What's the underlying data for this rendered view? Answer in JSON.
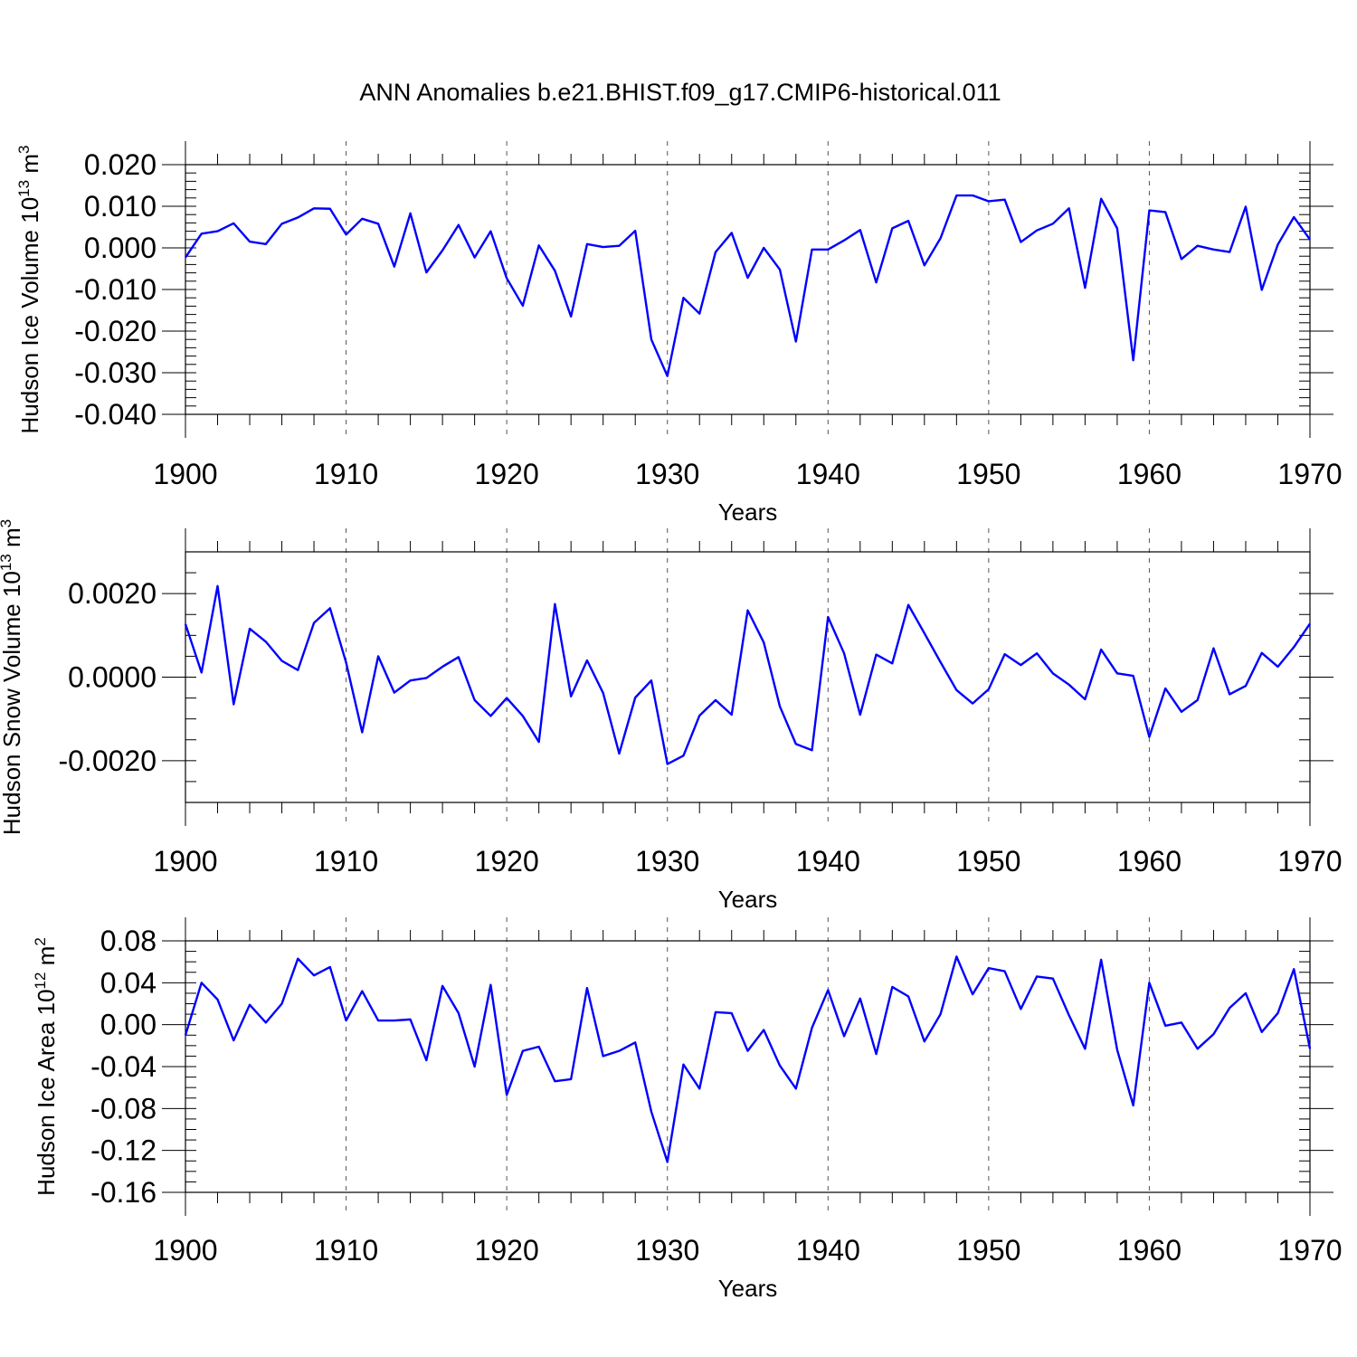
{
  "figure_title": "ANN Anomalies b.e21.BHIST.f09_g17.CMIP6-historical.011",
  "chart_data": [
    {
      "type": "line",
      "id": "ice-volume",
      "title": "ANN Anomalies b.e21.BHIST.f09_g17.CMIP6-historical.011",
      "ylabel": "Hudson Ice Volume 10",
      "ylabel_sup": "13",
      "ylabel_unit": " m",
      "ylabel_unit_sup": "3",
      "xlabel": "Years",
      "xlim": [
        1900,
        1970
      ],
      "ylim": [
        -0.04,
        0.02
      ],
      "x_ticks": [
        "1900",
        "1910",
        "1920",
        "1930",
        "1940",
        "1950",
        "1960",
        "1970"
      ],
      "y_ticks": [
        {
          "v": 0.02,
          "t": "0.020"
        },
        {
          "v": 0.01,
          "t": "0.010"
        },
        {
          "v": 0.0,
          "t": "0.000"
        },
        {
          "v": -0.01,
          "t": "-0.010"
        },
        {
          "v": -0.02,
          "t": "-0.020"
        },
        {
          "v": -0.03,
          "t": "-0.030"
        },
        {
          "v": -0.04,
          "t": "-0.040"
        }
      ],
      "y_minor_step": 0.002,
      "grid": "x-dashed",
      "series": [
        {
          "name": "Hudson Ice Volume",
          "color": "#0000ff",
          "x_start": 1900,
          "values": [
            -0.0023,
            0.0034,
            0.004,
            0.0059,
            0.0015,
            0.0009,
            0.0058,
            0.0073,
            0.0095,
            0.0094,
            0.0032,
            0.007,
            0.0058,
            -0.0045,
            0.0083,
            -0.0059,
            -0.0006,
            0.0055,
            -0.0023,
            0.004,
            -0.0073,
            -0.0139,
            0.0006,
            -0.0055,
            -0.0165,
            0.0009,
            0.0002,
            0.0005,
            0.0041,
            -0.022,
            -0.0308,
            -0.012,
            -0.0158,
            -0.001,
            0.0036,
            -0.0072,
            0.0,
            -0.0052,
            -0.0225,
            -0.0004,
            -0.0004,
            0.0018,
            0.0043,
            -0.0083,
            0.0047,
            0.0065,
            -0.0042,
            0.0023,
            0.0126,
            0.0126,
            0.0112,
            0.0116,
            0.0014,
            0.0042,
            0.0058,
            0.0095,
            -0.0096,
            0.0118,
            0.0047,
            -0.027,
            0.009,
            0.0086,
            -0.0027,
            0.0005,
            -0.0004,
            -0.001,
            0.0099,
            -0.0101,
            0.0008,
            0.0074,
            0.002
          ]
        }
      ]
    },
    {
      "type": "line",
      "id": "snow-volume",
      "ylabel": "Hudson Snow Volume 10",
      "ylabel_sup": "13",
      "ylabel_unit": " m",
      "ylabel_unit_sup": "3",
      "xlabel": "Years",
      "xlim": [
        1900,
        1970
      ],
      "ylim": [
        -0.003,
        0.003
      ],
      "x_ticks": [
        "1900",
        "1910",
        "1920",
        "1930",
        "1940",
        "1950",
        "1960",
        "1970"
      ],
      "y_ticks": [
        {
          "v": 0.002,
          "t": "0.0020"
        },
        {
          "v": 0.0,
          "t": "0.0000"
        },
        {
          "v": -0.002,
          "t": "-0.0020"
        }
      ],
      "y_minor_step": 0.0005,
      "grid": "x-dashed",
      "series": [
        {
          "name": "Hudson Snow Volume",
          "color": "#0000ff",
          "x_start": 1900,
          "values": [
            0.00127,
            0.00011,
            0.00218,
            -0.00065,
            0.00116,
            0.00085,
            0.00039,
            0.00017,
            0.0013,
            0.00165,
            0.00035,
            -0.00132,
            0.0005,
            -0.00037,
            -8e-05,
            -2e-05,
            0.00025,
            0.00048,
            -0.00055,
            -0.00093,
            -0.0005,
            -0.00093,
            -0.00155,
            0.00175,
            -0.00046,
            0.0004,
            -0.00038,
            -0.00183,
            -0.00049,
            -8e-05,
            -0.00208,
            -0.00188,
            -0.00092,
            -0.00055,
            -0.0009,
            0.0016,
            0.00083,
            -0.0007,
            -0.0016,
            -0.00175,
            0.00144,
            0.00057,
            -0.0009,
            0.00054,
            0.00033,
            0.00173,
            0.00105,
            0.00036,
            -0.00031,
            -0.00063,
            -0.00029,
            0.00055,
            0.00029,
            0.00057,
            9e-05,
            -0.00018,
            -0.00053,
            0.00066,
            9e-05,
            3e-05,
            -0.00143,
            -0.00027,
            -0.00083,
            -0.00055,
            0.00069,
            -0.00041,
            -0.00021,
            0.00058,
            0.00025,
            0.00072,
            0.00128
          ]
        }
      ]
    },
    {
      "type": "line",
      "id": "ice-area",
      "ylabel": "Hudson Ice Area 10",
      "ylabel_sup": "12",
      "ylabel_unit": " m",
      "ylabel_unit_sup": "2",
      "xlabel": "Years",
      "xlim": [
        1900,
        1970
      ],
      "ylim": [
        -0.16,
        0.08
      ],
      "x_ticks": [
        "1900",
        "1910",
        "1920",
        "1930",
        "1940",
        "1950",
        "1960",
        "1970"
      ],
      "y_ticks": [
        {
          "v": 0.08,
          "t": "0.08"
        },
        {
          "v": 0.04,
          "t": "0.04"
        },
        {
          "v": 0.0,
          "t": "0.00"
        },
        {
          "v": -0.04,
          "t": "-0.04"
        },
        {
          "v": -0.08,
          "t": "-0.08"
        },
        {
          "v": -0.12,
          "t": "-0.12"
        },
        {
          "v": -0.16,
          "t": "-0.16"
        }
      ],
      "y_minor_step": 0.01,
      "grid": "x-dashed",
      "series": [
        {
          "name": "Hudson Ice Area",
          "color": "#0000ff",
          "x_start": 1900,
          "values": [
            -0.01,
            0.04,
            0.024,
            -0.015,
            0.019,
            0.002,
            0.02,
            0.063,
            0.047,
            0.055,
            0.004,
            0.032,
            0.004,
            0.004,
            0.005,
            -0.034,
            0.037,
            0.011,
            -0.04,
            0.038,
            -0.067,
            -0.025,
            -0.021,
            -0.054,
            -0.052,
            0.035,
            -0.03,
            -0.025,
            -0.017,
            -0.083,
            -0.131,
            -0.038,
            -0.061,
            0.012,
            0.011,
            -0.025,
            -0.005,
            -0.039,
            -0.061,
            -0.003,
            0.033,
            -0.011,
            0.025,
            -0.028,
            0.036,
            0.027,
            -0.016,
            0.01,
            0.065,
            0.029,
            0.054,
            0.051,
            0.015,
            0.046,
            0.044,
            0.009,
            -0.023,
            0.062,
            -0.024,
            -0.077,
            0.04,
            -0.001,
            0.002,
            -0.023,
            -0.009,
            0.016,
            0.03,
            -0.007,
            0.011,
            0.053,
            -0.023
          ]
        }
      ]
    }
  ]
}
